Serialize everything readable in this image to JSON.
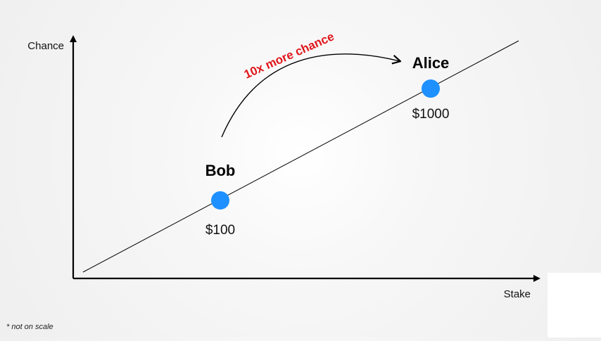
{
  "diagram": {
    "y_axis_label": "Chance",
    "x_axis_label": "Stake",
    "footnote": "* not on scale",
    "arrow_label": "10x more chance",
    "points": [
      {
        "name": "Bob",
        "value": "$100"
      },
      {
        "name": "Alice",
        "value": "$1000"
      }
    ]
  },
  "colors": {
    "point": "#1e90ff",
    "arrow_label": "#e0161b",
    "axis": "#000000"
  }
}
